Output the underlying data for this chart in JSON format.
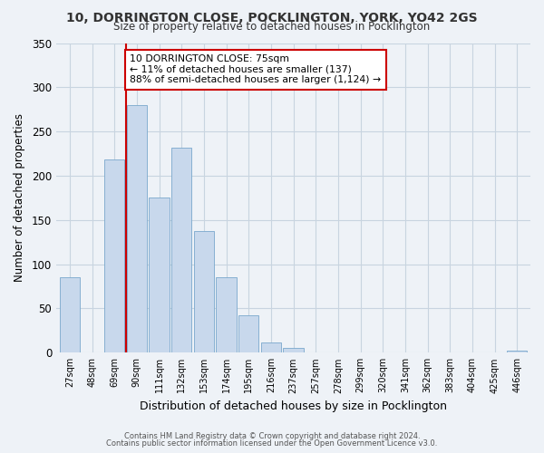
{
  "title": "10, DORRINGTON CLOSE, POCKLINGTON, YORK, YO42 2GS",
  "subtitle": "Size of property relative to detached houses in Pocklington",
  "xlabel": "Distribution of detached houses by size in Pocklington",
  "ylabel": "Number of detached properties",
  "bar_color": "#c8d8ec",
  "bar_edge_color": "#7aa8cc",
  "grid_color": "#c8d4e0",
  "background_color": "#eef2f7",
  "plot_bg_color": "#eef2f7",
  "categories": [
    "27sqm",
    "48sqm",
    "69sqm",
    "90sqm",
    "111sqm",
    "132sqm",
    "153sqm",
    "174sqm",
    "195sqm",
    "216sqm",
    "237sqm",
    "257sqm",
    "278sqm",
    "299sqm",
    "320sqm",
    "341sqm",
    "362sqm",
    "383sqm",
    "404sqm",
    "425sqm",
    "446sqm"
  ],
  "values": [
    85,
    0,
    218,
    280,
    175,
    232,
    138,
    85,
    42,
    12,
    5,
    0,
    0,
    0,
    0,
    0,
    0,
    0,
    0,
    0,
    2
  ],
  "ylim": [
    0,
    350
  ],
  "yticks": [
    0,
    50,
    100,
    150,
    200,
    250,
    300,
    350
  ],
  "vline_x": 2.5,
  "vline_color": "#cc0000",
  "annotation_title": "10 DORRINGTON CLOSE: 75sqm",
  "annotation_line1": "← 11% of detached houses are smaller (137)",
  "annotation_line2": "88% of semi-detached houses are larger (1,124) →",
  "annotation_box_edge": "#cc0000",
  "annotation_box_face": "#ffffff",
  "footer1": "Contains HM Land Registry data © Crown copyright and database right 2024.",
  "footer2": "Contains public sector information licensed under the Open Government Licence v3.0."
}
